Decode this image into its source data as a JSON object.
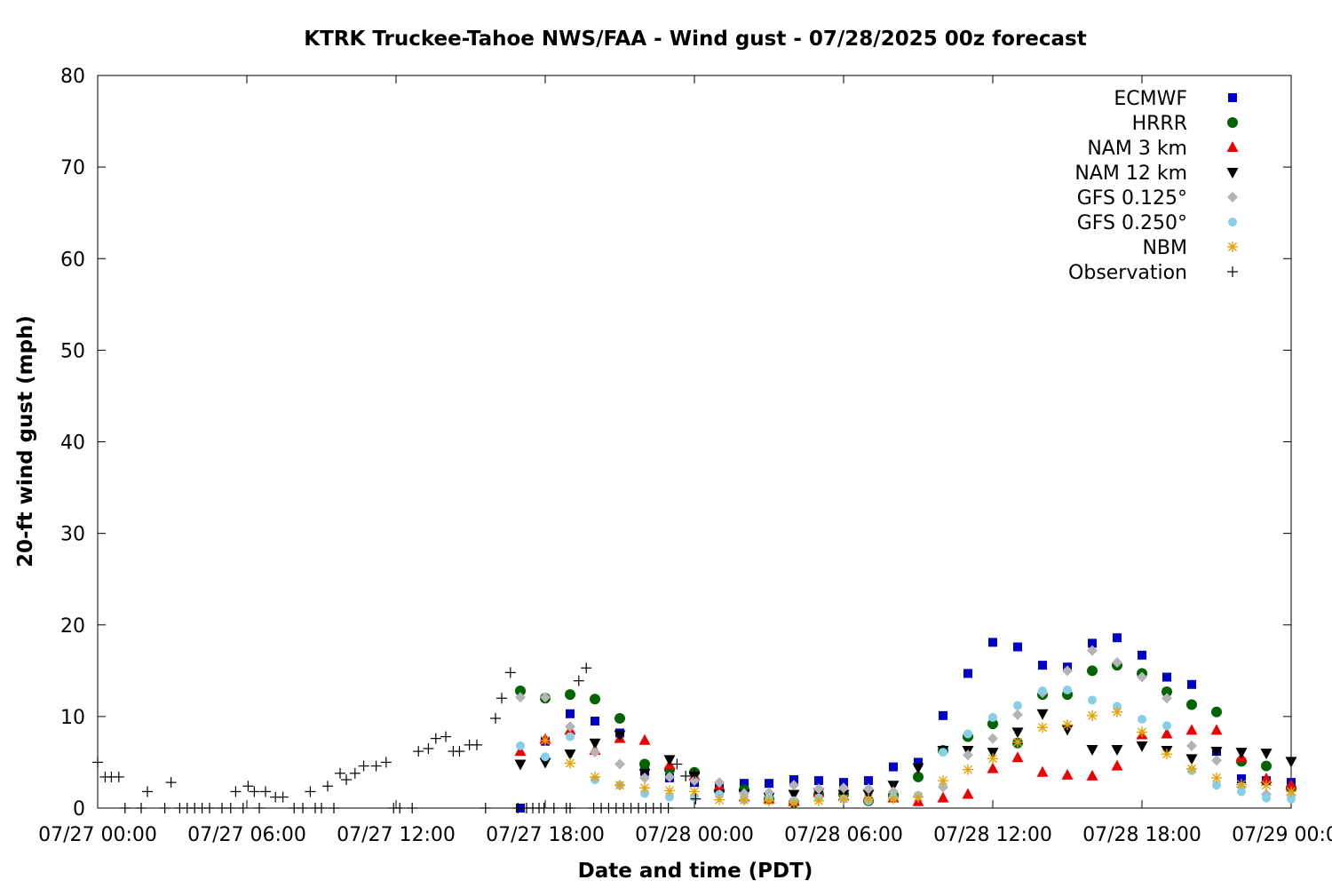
{
  "chart_data": {
    "type": "scatter",
    "title": "KTRK Truckee-Tahoe NWS/FAA - Wind gust - 07/28/2025 00z forecast",
    "xlabel": "Date and time (PDT)",
    "ylabel": "20-ft wind gust (mph)",
    "xlim": [
      "07/27 00:00",
      "07/29 00:00"
    ],
    "ylim": [
      0,
      80
    ],
    "x_ticks": [
      "07/27 00:00",
      "07/27 06:00",
      "07/27 12:00",
      "07/27 18:00",
      "07/28 00:00",
      "07/28 06:00",
      "07/28 12:00",
      "07/28 18:00",
      "07/29 00:00"
    ],
    "y_ticks": [
      "0",
      "10",
      "20",
      "30",
      "40",
      "50",
      "60",
      "70",
      "80"
    ],
    "legend_position": "top-right",
    "grid": false,
    "series": [
      {
        "name": "ECMWF",
        "marker": "square",
        "color": "#0000cc",
        "x": [
          17,
          18,
          19,
          20,
          21,
          22,
          23,
          24,
          25,
          26,
          27,
          28,
          29,
          30,
          31,
          32,
          33,
          34,
          35,
          36,
          37,
          38,
          39,
          40,
          41,
          42,
          43,
          44,
          45,
          46,
          47,
          48
        ],
        "y": [
          0,
          7.3,
          10.3,
          9.5,
          8.2,
          4.0,
          3.3,
          2.8,
          2.3,
          2.7,
          2.7,
          3.1,
          3.0,
          2.8,
          3.0,
          4.5,
          5.0,
          10.1,
          14.7,
          18.1,
          17.6,
          15.6,
          15.4,
          18.0,
          18.6,
          16.7,
          14.3,
          13.5,
          6.2,
          3.2,
          3.0,
          2.8
        ]
      },
      {
        "name": "HRRR",
        "marker": "circle",
        "color": "#006400",
        "x": [
          17,
          18,
          19,
          20,
          21,
          22,
          23,
          24,
          25,
          26,
          27,
          28,
          29,
          30,
          31,
          32,
          33,
          34,
          35,
          36,
          37,
          38,
          39,
          40,
          41,
          42,
          43,
          44,
          45,
          46,
          47,
          48
        ],
        "y": [
          12.8,
          12.0,
          12.4,
          11.9,
          9.8,
          4.8,
          4.2,
          3.9,
          1.9,
          2.0,
          1.0,
          0.6,
          1.5,
          1.5,
          0.8,
          1.4,
          3.4,
          6.3,
          7.8,
          9.2,
          7.1,
          12.4,
          12.4,
          15.0,
          15.6,
          14.7,
          12.7,
          11.3,
          10.5,
          5.1,
          4.6,
          2.2
        ]
      },
      {
        "name": "NAM 3 km",
        "marker": "triangle-up",
        "color": "#ee0000",
        "x": [
          17,
          18,
          19,
          20,
          21,
          22,
          23,
          24,
          25,
          26,
          27,
          28,
          29,
          30,
          31,
          32,
          33,
          34,
          35,
          36,
          37,
          38,
          39,
          40,
          41,
          42,
          43,
          44,
          45,
          46,
          47,
          48
        ],
        "y": [
          6.2,
          7.5,
          8.5,
          6.3,
          7.6,
          7.4,
          4.7,
          3.5,
          2.3,
          1.2,
          1.0,
          0.7,
          1.7,
          1.3,
          1.2,
          1.1,
          0.7,
          1.1,
          1.5,
          4.3,
          5.5,
          3.9,
          3.6,
          3.5,
          4.6,
          8.0,
          8.1,
          8.5,
          8.5,
          5.5,
          3.2,
          2.5
        ]
      },
      {
        "name": "NAM 12 km",
        "marker": "triangle-down",
        "color": "#000000",
        "x": [
          17,
          18,
          19,
          20,
          21,
          22,
          23,
          24,
          25,
          26,
          27,
          28,
          29,
          30,
          31,
          32,
          33,
          34,
          35,
          36,
          37,
          38,
          39,
          40,
          41,
          42,
          43,
          44,
          45,
          46,
          47,
          48
        ],
        "y": [
          4.8,
          5.0,
          5.9,
          7.1,
          8.0,
          3.8,
          5.3,
          3.5,
          1.5,
          1.5,
          1.2,
          1.5,
          1.7,
          1.5,
          1.5,
          2.5,
          4.4,
          6.3,
          6.3,
          6.1,
          8.3,
          10.3,
          8.6,
          6.4,
          6.4,
          6.8,
          6.3,
          5.4,
          6.2,
          6.1,
          6.0,
          5.1
        ]
      },
      {
        "name": "GFS 0.125°",
        "marker": "diamond",
        "color": "#b4b4b4",
        "x": [
          17,
          18,
          19,
          20,
          21,
          22,
          23,
          24,
          25,
          26,
          27,
          28,
          29,
          30,
          31,
          32,
          33,
          34,
          35,
          36,
          37,
          38,
          39,
          40,
          41,
          42,
          43,
          44,
          45,
          46,
          47,
          48
        ],
        "y": [
          12.1,
          12.1,
          8.9,
          6.1,
          4.8,
          3.3,
          3.4,
          3.0,
          2.8,
          1.6,
          1.7,
          2.5,
          2.1,
          2.2,
          2.1,
          1.8,
          1.3,
          2.3,
          5.8,
          7.6,
          10.2,
          12.6,
          15.0,
          17.2,
          15.9,
          14.3,
          12.0,
          6.8,
          5.2,
          2.3,
          1.5,
          1.4
        ]
      },
      {
        "name": "GFS 0.250°",
        "marker": "circle-small",
        "color": "#87ceeb",
        "x": [
          17,
          18,
          19,
          20,
          21,
          22,
          23,
          24,
          25,
          26,
          27,
          28,
          29,
          30,
          31,
          32,
          33,
          34,
          35,
          36,
          37,
          38,
          39,
          40,
          41,
          42,
          43,
          44,
          45,
          46,
          47,
          48
        ],
        "y": [
          6.8,
          5.6,
          7.8,
          3.1,
          2.5,
          1.6,
          1.2,
          1.2,
          1.5,
          0.9,
          1.1,
          0.8,
          1.1,
          1.0,
          0.8,
          1.2,
          1.4,
          6.1,
          8.1,
          9.9,
          11.2,
          12.8,
          12.9,
          11.8,
          11.1,
          9.7,
          9.0,
          4.1,
          2.5,
          1.8,
          1.1,
          1.0
        ]
      },
      {
        "name": "NBM",
        "marker": "asterisk",
        "color": "#e8a200",
        "x": [
          18,
          19,
          20,
          21,
          22,
          23,
          24,
          25,
          26,
          27,
          28,
          29,
          30,
          31,
          32,
          33,
          34,
          35,
          36,
          37,
          38,
          39,
          40,
          41,
          42,
          43,
          44,
          45,
          46,
          47,
          48
        ],
        "y": [
          7.4,
          4.9,
          3.4,
          2.5,
          2.2,
          1.9,
          1.8,
          0.9,
          0.9,
          0.8,
          0.6,
          0.8,
          1.0,
          1.0,
          1.0,
          1.2,
          3.0,
          4.2,
          5.4,
          7.2,
          8.8,
          9.1,
          10.1,
          10.5,
          8.3,
          5.9,
          4.3,
          3.3,
          2.6,
          2.5,
          1.8
        ]
      },
      {
        "name": "Observation",
        "marker": "plus",
        "color": "#000000",
        "x": [
          0,
          0.3,
          0.55,
          0.85,
          1.1,
          1.75,
          2.0,
          2.7,
          2.95,
          3.3,
          3.6,
          3.9,
          4.2,
          4.5,
          5.0,
          5.35,
          5.55,
          5.85,
          6.05,
          6.3,
          6.5,
          6.75,
          7.15,
          7.45,
          7.9,
          8.25,
          8.55,
          8.75,
          9.0,
          9.25,
          9.5,
          9.75,
          10.0,
          10.35,
          10.7,
          11.2,
          11.6,
          11.9,
          12.15,
          12.65,
          12.9,
          13.3,
          13.6,
          14.0,
          14.3,
          14.55,
          14.95,
          15.25,
          15.6,
          16.0,
          16.25,
          16.6,
          16.9,
          17.25,
          17.5,
          17.75,
          17.95,
          18.35,
          18.85,
          19.0,
          19.35,
          19.65,
          19.95,
          20.25,
          20.55,
          20.85,
          21.15,
          21.45,
          21.75,
          22.05,
          22.35,
          22.65,
          22.95,
          23.3,
          23.65,
          24.0,
          24.05
        ],
        "y": [
          5.0,
          3.4,
          3.4,
          3.4,
          0,
          0,
          1.8,
          0,
          2.8,
          0,
          0,
          0,
          0,
          0,
          0,
          0,
          1.8,
          0,
          2.4,
          1.8,
          0,
          1.8,
          1.2,
          1.2,
          0,
          0,
          1.8,
          0,
          0,
          2.4,
          0,
          3.8,
          3.1,
          3.8,
          4.6,
          4.6,
          5.0,
          0,
          0,
          0,
          6.2,
          6.5,
          7.6,
          7.8,
          6.2,
          6.2,
          6.9,
          6.9,
          0,
          9.8,
          12.0,
          14.8,
          0,
          0,
          0,
          0,
          0,
          0,
          0,
          0,
          13.9,
          15.3,
          0,
          0,
          0,
          0,
          0,
          0,
          0,
          0,
          0,
          0,
          0,
          4.8,
          3.5,
          3.8,
          1.0
        ]
      }
    ]
  }
}
